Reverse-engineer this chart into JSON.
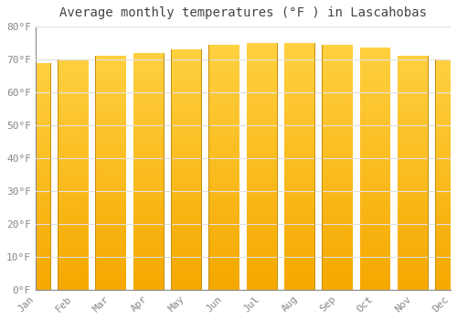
{
  "title": "Average monthly temperatures (°F ) in Lascahobas",
  "months": [
    "Jan",
    "Feb",
    "Mar",
    "Apr",
    "May",
    "Jun",
    "Jul",
    "Aug",
    "Sep",
    "Oct",
    "Nov",
    "Dec"
  ],
  "values": [
    69,
    70,
    71,
    72,
    73,
    74.5,
    75,
    75,
    74.5,
    73.5,
    71,
    70
  ],
  "ylim": [
    0,
    80
  ],
  "yticks": [
    0,
    10,
    20,
    30,
    40,
    50,
    60,
    70,
    80
  ],
  "bar_color_bottom": "#F5A800",
  "bar_color_top": "#FFD040",
  "bar_edge_color": "#C8900A",
  "background_color": "#ffffff",
  "plot_bg_color": "#ffffff",
  "grid_color": "#e0e0e0",
  "title_fontsize": 10,
  "tick_fontsize": 8,
  "bar_width": 0.82
}
